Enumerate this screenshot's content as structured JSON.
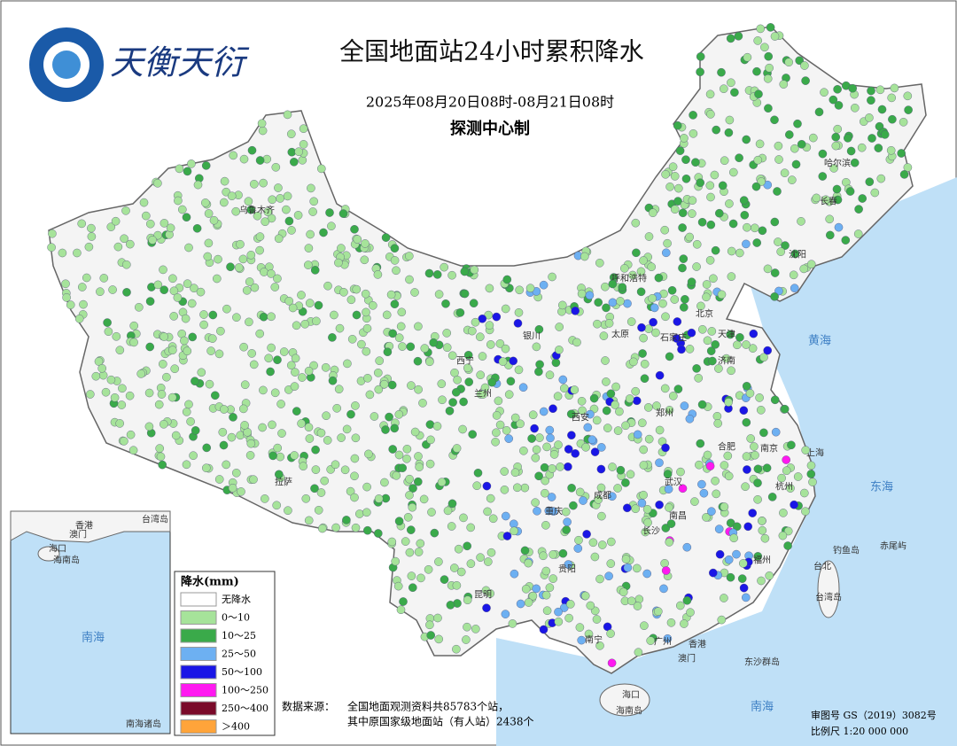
{
  "header": {
    "logo_text": "天衡天衍",
    "title": "全国地面站24小时累积降水",
    "date_range": "2025年08月20日08时-08月21日08时",
    "producer": "探测中心制"
  },
  "legend": {
    "title": "降水(mm)",
    "items": [
      "无降水",
      "0～10",
      "10～25",
      "25～50",
      "50～100",
      "100～250",
      "250～400",
      "＞400"
    ]
  },
  "labels": [
    "乌鲁木齐",
    "哈尔滨",
    "长春",
    "沈阳",
    "呼和浩特",
    "北京",
    "天津",
    "石家庄",
    "太原",
    "济南",
    "银川",
    "兰州",
    "西宁",
    "西安",
    "郑州",
    "合肥",
    "南京",
    "上海",
    "杭州",
    "武汉",
    "成都",
    "重庆",
    "长沙",
    "南昌",
    "福州",
    "贵阳",
    "昆明",
    "南宁",
    "广州",
    "香港",
    "澳门",
    "海口",
    "海南岛",
    "拉萨",
    "台北",
    "台湾岛",
    "钓鱼岛",
    "赤尾屿",
    "东沙群岛",
    "黄海",
    "东海",
    "南海"
  ],
  "inset": {
    "labels": [
      "台湾岛",
      "香港",
      "澳门",
      "海口",
      "海南岛",
      "南海",
      "南海诸岛"
    ]
  },
  "source": {
    "label": "数据来源：",
    "lines": [
      "全国地面观测资料共85783个站，",
      "其中原国家级地面站（有人站）2438个"
    ]
  },
  "footer": {
    "approval": "审图号  GS（2019）3082号",
    "scale": "比例尺   1:20 000 000"
  }
}
